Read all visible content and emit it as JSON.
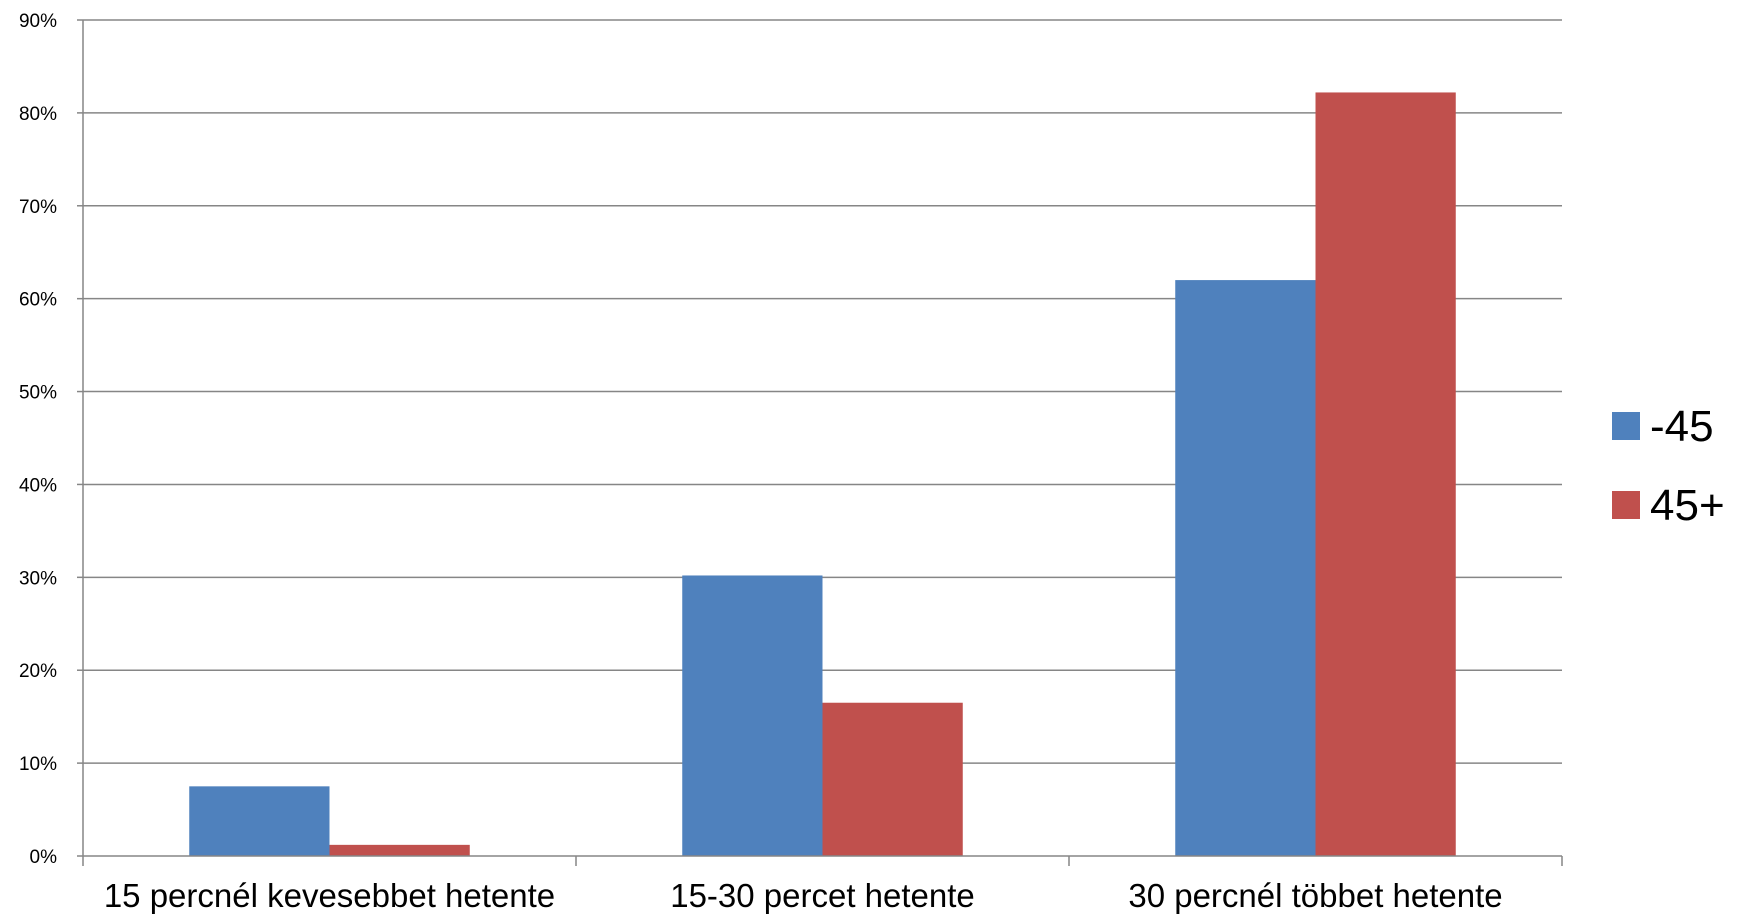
{
  "chart_data": {
    "type": "bar",
    "title": "",
    "xlabel": "",
    "ylabel": "",
    "categories": [
      "15 percnél kevesebbet hetente",
      "15-30 percet hetente",
      "30 percnél többet hetente"
    ],
    "series": [
      {
        "name": "-45",
        "color": "#4F81BD",
        "values": [
          7.5,
          30.2,
          62.0
        ]
      },
      {
        "name": "45+",
        "color": "#C0504D",
        "values": [
          1.2,
          16.5,
          82.2
        ]
      }
    ],
    "ylim": [
      0,
      90
    ],
    "yticks": [
      "0%",
      "10%",
      "20%",
      "30%",
      "40%",
      "50%",
      "60%",
      "70%",
      "80%",
      "90%"
    ],
    "grid": true,
    "legend_position": "right"
  }
}
